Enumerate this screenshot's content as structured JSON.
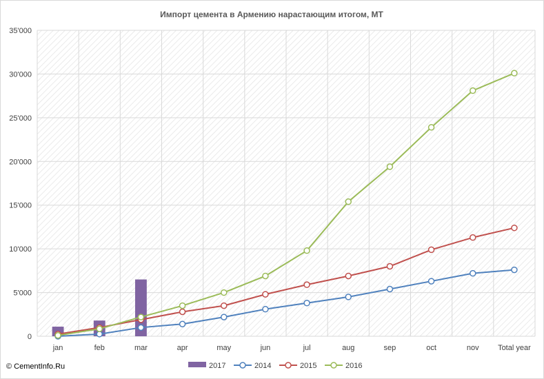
{
  "chart_data": {
    "type": "bar+line",
    "title": "Импорт цемента в Армению нарастающим  итогом, МТ",
    "categories": [
      "jan",
      "feb",
      "mar",
      "apr",
      "may",
      "jun",
      "jul",
      "aug",
      "sep",
      "oct",
      "nov",
      "Total year"
    ],
    "ylim": [
      0,
      35000
    ],
    "yticks": [
      0,
      5000,
      10000,
      15000,
      20000,
      25000,
      30000,
      35000
    ],
    "ytick_labels": [
      "0",
      "5'000",
      "10'000",
      "15'000",
      "20'000",
      "25'000",
      "30'000",
      "35'000"
    ],
    "grid": true,
    "legend_position": "bottom",
    "series": [
      {
        "name": "2017",
        "type": "bar",
        "color": "#8064a2",
        "values": [
          1100,
          1800,
          6500,
          null,
          null,
          null,
          null,
          null,
          null,
          null,
          null,
          null
        ]
      },
      {
        "name": "2014",
        "type": "line",
        "color": "#4f81bd",
        "values": [
          0,
          250,
          1000,
          1400,
          2200,
          3100,
          3800,
          4500,
          5400,
          6300,
          7200,
          7600
        ]
      },
      {
        "name": "2015",
        "type": "line",
        "color": "#c0504d",
        "values": [
          250,
          1000,
          1900,
          2800,
          3500,
          4800,
          5900,
          6900,
          8000,
          9900,
          11300,
          12400
        ]
      },
      {
        "name": "2016",
        "type": "line",
        "color": "#9bbb59",
        "values": [
          100,
          850,
          2200,
          3500,
          5000,
          6900,
          9800,
          15400,
          19400,
          23900,
          28100,
          30100
        ]
      }
    ]
  },
  "footer": {
    "copyright": "© CementInfo.Ru"
  }
}
